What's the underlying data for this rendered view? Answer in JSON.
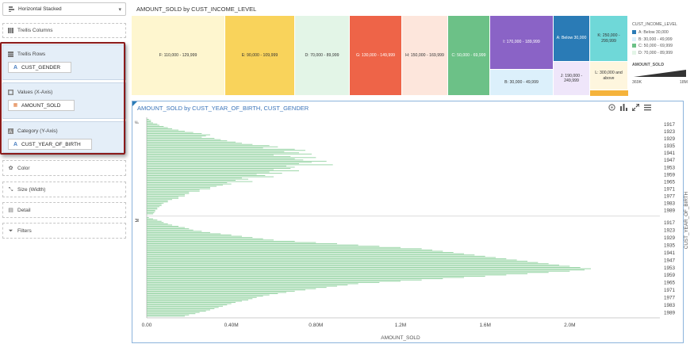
{
  "left_panel": {
    "chart_type": "Horizontal Stacked",
    "zones": {
      "trellis_columns": "Trellis Columns",
      "trellis_rows": "Trellis Rows",
      "trellis_rows_chip": "CUST_GENDER",
      "values": "Values (X-Axis)",
      "values_chip": "AMOUNT_SOLD",
      "category": "Category (Y-Axis)",
      "category_chip": "CUST_YEAR_OF_BIRTH",
      "color": "Color",
      "size": "Size (Width)",
      "detail": "Detail",
      "filters": "Filters"
    }
  },
  "treemap": {
    "title": "AMOUNT_SOLD by CUST_INCOME_LEVEL",
    "tiles": [
      {
        "label": "F: 110,000 - 129,999",
        "color": "#fef6cf"
      },
      {
        "label": "E: 90,000 - 109,999",
        "color": "#f9d35b"
      },
      {
        "label": "D: 70,000 - 89,999",
        "color": "#e3f5e7"
      },
      {
        "label": "G: 130,000 - 149,999",
        "color": "#ee6448"
      },
      {
        "label": "H: 150,000 - 169,999",
        "color": "#fde6dc"
      },
      {
        "label": "C: 50,000 - 69,999",
        "color": "#6cc187"
      },
      {
        "label": "I: 170,000 - 189,999",
        "color": "#8a63c6"
      },
      {
        "label": "B: 30,000 - 49,999",
        "color": "#dcf0fb"
      },
      {
        "label": "A: Below 30,000",
        "color": "#2a7bb6"
      },
      {
        "label": "K: 250,000 - 299,999",
        "color": "#6fd8d8"
      },
      {
        "label": "J: 190,000 - 249,999",
        "color": "#efe6fa"
      },
      {
        "label": "L: 300,000 and above",
        "color": "#fef6de"
      }
    ],
    "legend": {
      "title": "CUST_INCOME_LEVEL",
      "items": [
        {
          "label": "A: Below 30,000",
          "color": "#2a7bb6"
        },
        {
          "label": "B: 30,000 - 49,999",
          "color": "#dcf0fb"
        },
        {
          "label": "C: 50,000 - 69,999",
          "color": "#6cc187"
        },
        {
          "label": "D: 70,000 - 89,999",
          "color": "#e3f5e7"
        }
      ],
      "size_title": "AMOUNT_SOLD",
      "size_min": "369K",
      "size_max": "18M"
    }
  },
  "chart_panel": {
    "title": "AMOUNT_SOLD by CUST_YEAR_OF_BIRTH, CUST_GENDER"
  },
  "chart_data": {
    "type": "bar",
    "orientation": "horizontal",
    "title": "AMOUNT_SOLD by CUST_YEAR_OF_BIRTH, CUST_GENDER",
    "xlabel": "AMOUNT_SOLD",
    "ylabel": "CUST_YEAR_OF_BIRTH",
    "x_ticks": [
      "0.00",
      "0.40M",
      "0.80M",
      "1.2M",
      "1.6M",
      "2.0M"
    ],
    "xlim": [
      0,
      2.4
    ],
    "bar_color": "#8fd19e",
    "y_tick_labels": [
      "1917",
      "1923",
      "1929",
      "1935",
      "1941",
      "1947",
      "1953",
      "1959",
      "1965",
      "1971",
      "1977",
      "1983",
      "1989"
    ],
    "groups": [
      {
        "name": "F",
        "start_year": 1913,
        "values": [
          0.01,
          0.02,
          0.02,
          0.03,
          0.05,
          0.06,
          0.08,
          0.1,
          0.12,
          0.15,
          0.18,
          0.22,
          0.26,
          0.3,
          0.28,
          0.26,
          0.32,
          0.35,
          0.38,
          0.42,
          0.45,
          0.5,
          0.58,
          0.62,
          0.55,
          0.7,
          0.75,
          0.65,
          0.72,
          0.78,
          0.6,
          0.68,
          0.8,
          0.7,
          0.74,
          0.85,
          0.78,
          0.72,
          0.88,
          0.66,
          0.7,
          0.68,
          0.6,
          0.72,
          0.58,
          0.64,
          0.52,
          0.56,
          0.6,
          0.45,
          0.48,
          0.42,
          0.5,
          0.38,
          0.4,
          0.36,
          0.33,
          0.3,
          0.3,
          0.25,
          0.25,
          0.2,
          0.2,
          0.18,
          0.18,
          0.15,
          0.15,
          0.12,
          0.1,
          0.1,
          0.08,
          0.07,
          0.07,
          0.06,
          0.05,
          0.05,
          0.04,
          0.04,
          0.035,
          0.03
        ]
      },
      {
        "name": "M",
        "start_year": 1913,
        "values": [
          0.01,
          0.03,
          0.05,
          0.07,
          0.08,
          0.1,
          0.12,
          0.15,
          0.18,
          0.2,
          0.22,
          0.26,
          0.3,
          0.35,
          0.4,
          0.45,
          0.5,
          0.55,
          0.6,
          0.7,
          0.8,
          0.9,
          1.0,
          1.1,
          1.2,
          1.3,
          1.35,
          1.4,
          1.45,
          1.5,
          1.55,
          1.6,
          1.65,
          1.7,
          1.75,
          1.8,
          1.85,
          1.9,
          1.95,
          2.0,
          2.05,
          2.1,
          2.07,
          2.0,
          1.9,
          1.8,
          1.7,
          1.6,
          1.5,
          1.4,
          1.3,
          1.2,
          1.1,
          1.0,
          0.95,
          0.9,
          0.85,
          0.8,
          0.75,
          0.7,
          0.66,
          0.62,
          0.58,
          0.55,
          0.52,
          0.5,
          0.48,
          0.45,
          0.42,
          0.4,
          0.38,
          0.36,
          0.34,
          0.32,
          0.3,
          0.28,
          0.25,
          0.23,
          0.2,
          0.18
        ]
      }
    ]
  },
  "icons": {
    "settings": "gear-icon",
    "chart_type": "bar-chart-icon",
    "maximize": "expand-icon",
    "menu": "menu-icon"
  }
}
